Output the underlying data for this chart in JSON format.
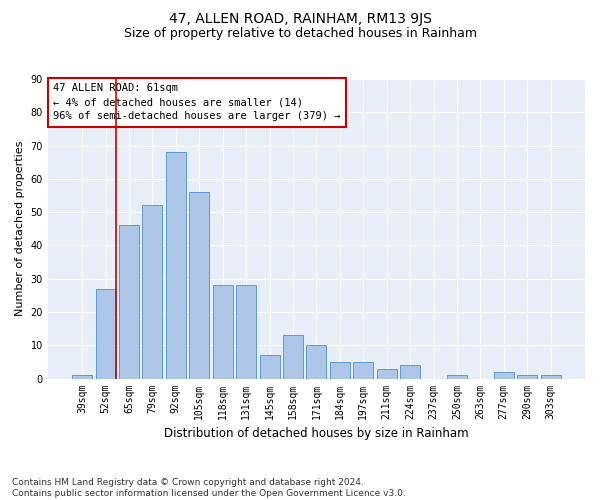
{
  "title": "47, ALLEN ROAD, RAINHAM, RM13 9JS",
  "subtitle": "Size of property relative to detached houses in Rainham",
  "xlabel": "Distribution of detached houses by size in Rainham",
  "ylabel": "Number of detached properties",
  "categories": [
    "39sqm",
    "52sqm",
    "65sqm",
    "79sqm",
    "92sqm",
    "105sqm",
    "118sqm",
    "131sqm",
    "145sqm",
    "158sqm",
    "171sqm",
    "184sqm",
    "197sqm",
    "211sqm",
    "224sqm",
    "237sqm",
    "250sqm",
    "263sqm",
    "277sqm",
    "290sqm",
    "303sqm"
  ],
  "values": [
    1,
    27,
    46,
    52,
    68,
    56,
    28,
    28,
    7,
    13,
    10,
    5,
    5,
    3,
    4,
    0,
    1,
    0,
    2,
    1,
    1
  ],
  "bar_color": "#aec6e8",
  "bar_edge_color": "#5b9bd5",
  "vline_color": "#cc0000",
  "annotation_box_text": "47 ALLEN ROAD: 61sqm\n← 4% of detached houses are smaller (14)\n96% of semi-detached houses are larger (379) →",
  "annotation_box_color": "#ffffff",
  "annotation_box_edge_color": "#cc0000",
  "ylim": [
    0,
    90
  ],
  "yticks": [
    0,
    10,
    20,
    30,
    40,
    50,
    60,
    70,
    80,
    90
  ],
  "bg_color": "#e8eef7",
  "footer_text": "Contains HM Land Registry data © Crown copyright and database right 2024.\nContains public sector information licensed under the Open Government Licence v3.0.",
  "title_fontsize": 10,
  "subtitle_fontsize": 9,
  "xlabel_fontsize": 8.5,
  "ylabel_fontsize": 8,
  "tick_fontsize": 7,
  "annotation_fontsize": 7.5,
  "footer_fontsize": 6.5
}
